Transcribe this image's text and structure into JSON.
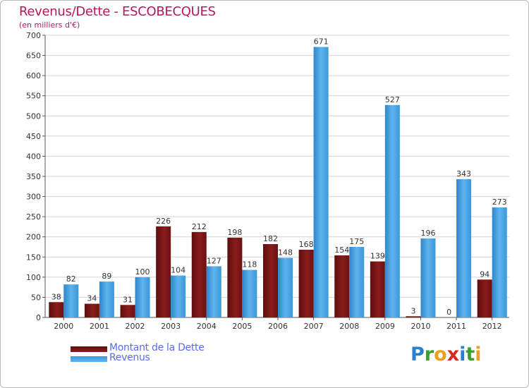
{
  "title": "Revenus/Dette - ESCOBECQUES",
  "subtitle": "(en milliers d'€)",
  "colors": {
    "title": "#b5185a",
    "dette": "#7a1414",
    "revenus": "#3d9fe0",
    "grid": "#d4d4d4",
    "legend_text": "#5a6de8"
  },
  "legend": {
    "dette_label": "Montant de la Dette",
    "revenus_label": "Revenus"
  },
  "logo": {
    "letters": [
      "P",
      "r",
      "o",
      "x",
      "i",
      "t",
      "i"
    ],
    "letter_colors": [
      "#2a7fcf",
      "#3aa02e",
      "#e8a11a",
      "#d8281f",
      "#2a7fcf",
      "#3aa02e",
      "#e8a11a"
    ]
  },
  "chart_data": {
    "type": "bar",
    "title": "Revenus/Dette - ESCOBECQUES",
    "ylabel": "(en milliers d'€)",
    "xlabel": "",
    "ylim": [
      0,
      700
    ],
    "yticks": [
      0,
      50,
      100,
      150,
      200,
      250,
      300,
      350,
      400,
      450,
      500,
      550,
      600,
      650,
      700
    ],
    "grid": true,
    "legend_position": "bottom-left",
    "categories": [
      "2000",
      "2001",
      "2002",
      "2003",
      "2004",
      "2005",
      "2006",
      "2007",
      "2008",
      "2009",
      "2010",
      "2011",
      "2012"
    ],
    "series": [
      {
        "name": "Montant de la Dette",
        "key": "dette",
        "values": [
          38,
          34,
          31,
          226,
          212,
          198,
          182,
          168,
          154,
          139,
          3,
          0,
          94
        ]
      },
      {
        "name": "Revenus",
        "key": "revenus",
        "values": [
          82,
          89,
          100,
          104,
          127,
          118,
          148,
          671,
          175,
          527,
          196,
          343,
          273
        ]
      }
    ]
  }
}
